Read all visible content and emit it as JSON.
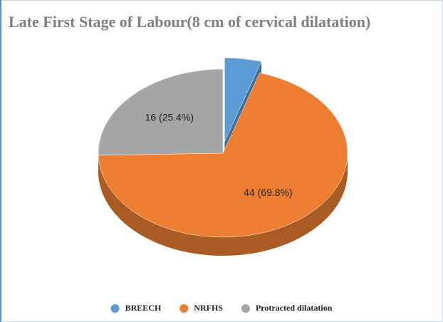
{
  "chart_data": {
    "type": "pie",
    "title": "Late First Stage of Labour(8 cm of cervical dilatation)",
    "categories": [
      "BREECH",
      "NRFHS",
      "Protracted dilatation"
    ],
    "values": [
      3,
      44,
      16
    ],
    "value_labels": [
      null,
      "44 (69.8%)",
      "16 (25.4%)"
    ],
    "colors": [
      "#5b9bd5",
      "#ed7d31",
      "#a5a5a5"
    ],
    "exploded": [
      true,
      false,
      false
    ],
    "legend": "bottom"
  }
}
